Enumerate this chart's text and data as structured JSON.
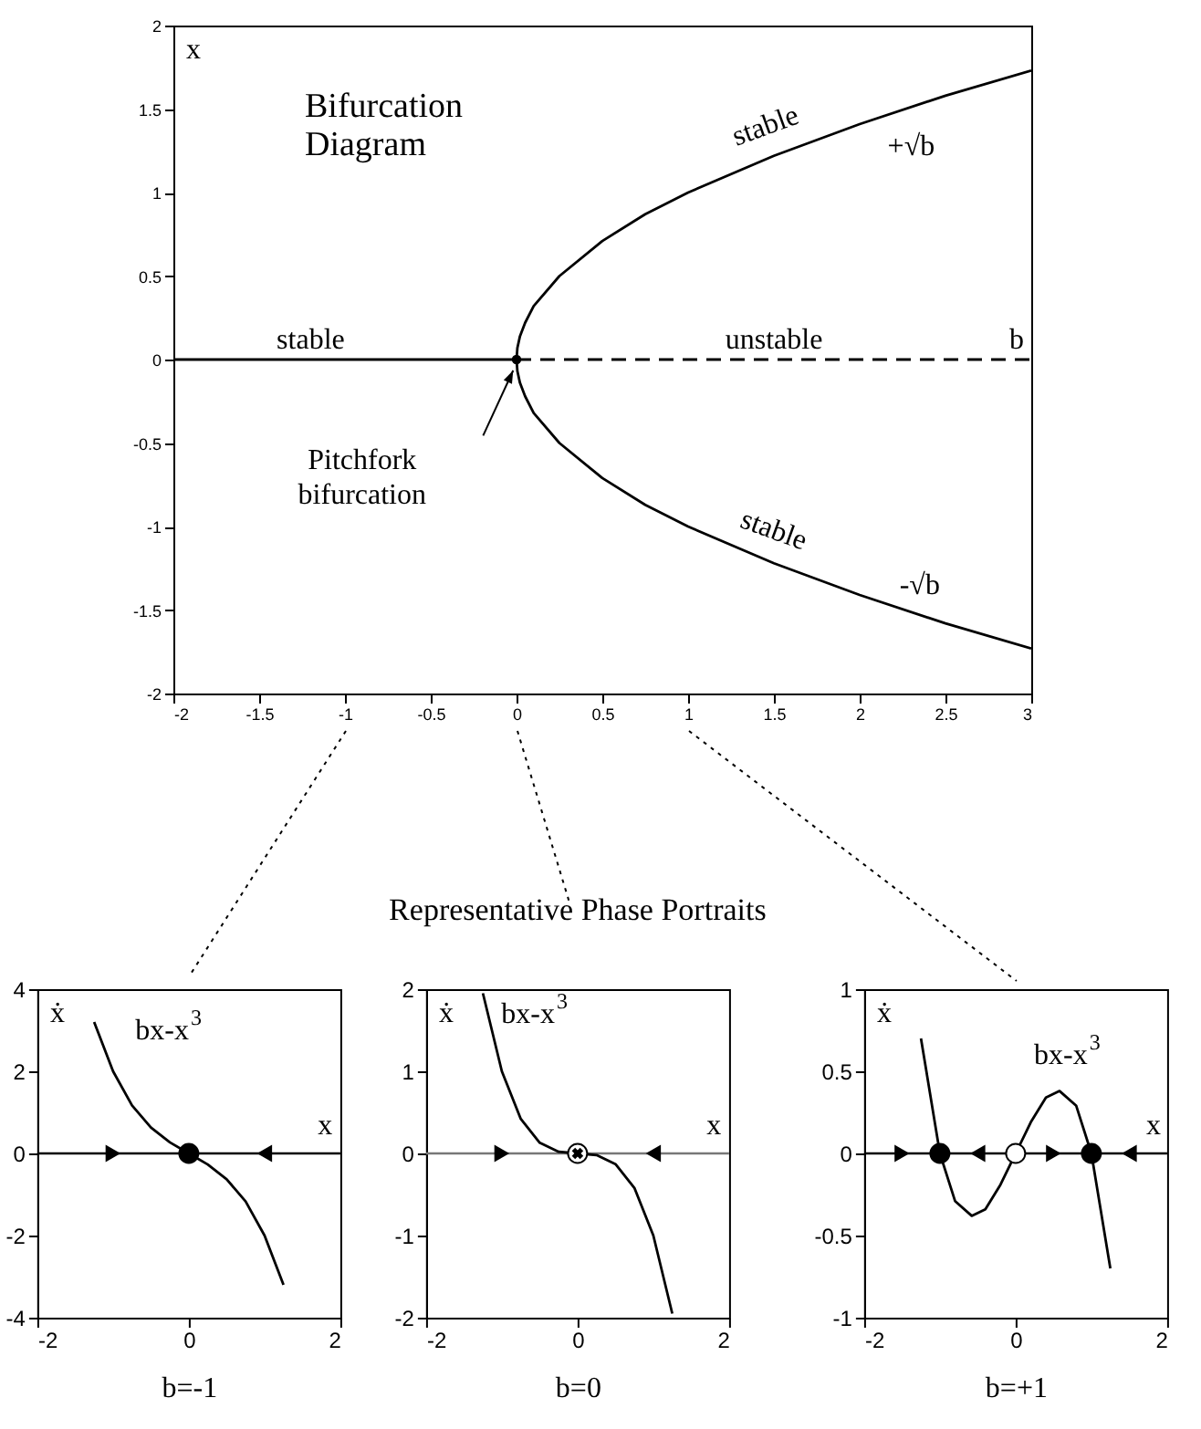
{
  "chart_data": [
    {
      "type": "line",
      "title": "Bifurcation Diagram",
      "xlabel": "b",
      "ylabel": "x",
      "xlim": [
        -2,
        3
      ],
      "ylim": [
        -2,
        2
      ],
      "xticks": [
        -2,
        -1.5,
        -1,
        -0.5,
        0,
        0.5,
        1,
        1.5,
        2,
        2.5,
        3
      ],
      "yticks": [
        -2,
        -1.5,
        -1,
        -0.5,
        0,
        0.5,
        1,
        1.5,
        2
      ],
      "grid": false,
      "series": [
        {
          "type": "line",
          "color": "#000000",
          "line_style": "solid",
          "x": [
            -2,
            0
          ],
          "values": [
            0,
            0
          ]
        },
        {
          "type": "line",
          "color": "#000000",
          "line_style": "dashed",
          "x": [
            0,
            3
          ],
          "values": [
            0,
            0
          ]
        },
        {
          "type": "line",
          "color": "#000000",
          "line_style": "solid",
          "x": [
            0,
            0.005,
            0.02,
            0.05,
            0.1,
            0.25,
            0.5,
            0.75,
            1,
            1.5,
            2,
            2.5,
            3
          ],
          "values": [
            0,
            0.07,
            0.14,
            0.22,
            0.32,
            0.5,
            0.71,
            0.87,
            1,
            1.22,
            1.41,
            1.58,
            1.73
          ]
        },
        {
          "type": "line",
          "color": "#000000",
          "line_style": "solid",
          "x": [
            0,
            0.005,
            0.02,
            0.05,
            0.1,
            0.25,
            0.5,
            0.75,
            1,
            1.5,
            2,
            2.5,
            3
          ],
          "values": [
            0,
            -0.07,
            -0.14,
            -0.22,
            -0.32,
            -0.5,
            -0.71,
            -0.87,
            -1,
            -1.22,
            -1.41,
            -1.58,
            -1.73
          ]
        },
        {
          "type": "scatter",
          "color": "#000000",
          "x": [
            0
          ],
          "values": [
            0
          ]
        }
      ],
      "annotations": [
        "stable",
        "stable",
        "+√b",
        "unstable",
        "stable",
        "-√b",
        "Pitchfork bifurcation"
      ]
    },
    {
      "type": "line",
      "xlabel": "b=-1",
      "ylabel": "ẋ",
      "xlim": [
        -2,
        2
      ],
      "ylim": [
        -4,
        4
      ],
      "xticks": [
        -2,
        0,
        2
      ],
      "yticks": [
        -4,
        -2,
        0,
        2,
        4
      ],
      "grid": false,
      "series": [
        {
          "type": "line",
          "color": "#000000",
          "x": [
            -1.25,
            -1,
            -0.75,
            -0.5,
            -0.25,
            0,
            0.25,
            0.5,
            0.75,
            1,
            1.25
          ],
          "values": [
            3.2,
            2,
            1.17,
            0.63,
            0.27,
            0,
            -0.27,
            -0.63,
            -1.17,
            -2,
            -3.2
          ]
        },
        {
          "type": "scatter",
          "color": "#000000",
          "x": [
            0
          ],
          "values": [
            0
          ]
        }
      ],
      "ref_lines": [
        {
          "axis": "y",
          "value": 0,
          "color": "#000000"
        }
      ],
      "annotations": [
        "bx-x$^{3}$",
        "x"
      ]
    },
    {
      "type": "line",
      "title": "Representative Phase Portraits",
      "xlabel": "b=0",
      "ylabel": "ẋ",
      "xlim": [
        -2,
        2
      ],
      "ylim": [
        -2,
        2
      ],
      "xticks": [
        -2,
        0,
        2
      ],
      "yticks": [
        -2,
        -1,
        0,
        1,
        2
      ],
      "grid": false,
      "series": [
        {
          "type": "line",
          "color": "#000000",
          "x": [
            -1.25,
            -1,
            -0.75,
            -0.5,
            -0.25,
            0,
            0.25,
            0.5,
            0.75,
            1,
            1.25
          ],
          "values": [
            1.95,
            1,
            0.42,
            0.13,
            0.02,
            0,
            -0.02,
            -0.13,
            -0.42,
            -1,
            -1.95
          ]
        },
        {
          "type": "scatter",
          "color": "#ffffff",
          "x": [
            0
          ],
          "values": [
            0
          ]
        }
      ],
      "ref_lines": [
        {
          "axis": "y",
          "value": 0,
          "color": "#777777"
        }
      ],
      "annotations": [
        "bx-x$^{3}$",
        "x"
      ]
    },
    {
      "type": "line",
      "xlabel": "b=+1",
      "ylabel": "ẋ",
      "xlim": [
        -2,
        2
      ],
      "ylim": [
        -1,
        1
      ],
      "xticks": [
        -2,
        0,
        2
      ],
      "yticks": [
        -1,
        -0.5,
        0,
        0.5,
        1
      ],
      "grid": false,
      "series": [
        {
          "type": "line",
          "color": "#000000",
          "x": [
            -1.25,
            -1,
            -0.8,
            -0.58,
            -0.4,
            -0.2,
            0,
            0.2,
            0.4,
            0.58,
            0.8,
            1,
            1.25
          ],
          "values": [
            0.7,
            0,
            -0.29,
            -0.38,
            -0.34,
            -0.19,
            0,
            0.19,
            0.34,
            0.38,
            0.29,
            0,
            -0.7
          ]
        },
        {
          "type": "scatter",
          "color": "#000000",
          "x": [
            -1,
            1
          ],
          "values": [
            0,
            0
          ]
        },
        {
          "type": "scatter",
          "color": "#ffffff",
          "x": [
            0
          ],
          "values": [
            0
          ]
        }
      ],
      "ref_lines": [
        {
          "axis": "y",
          "value": 0,
          "color": "#000000"
        }
      ],
      "annotations": [
        "bx-x$^{3}$",
        "x"
      ]
    }
  ]
}
